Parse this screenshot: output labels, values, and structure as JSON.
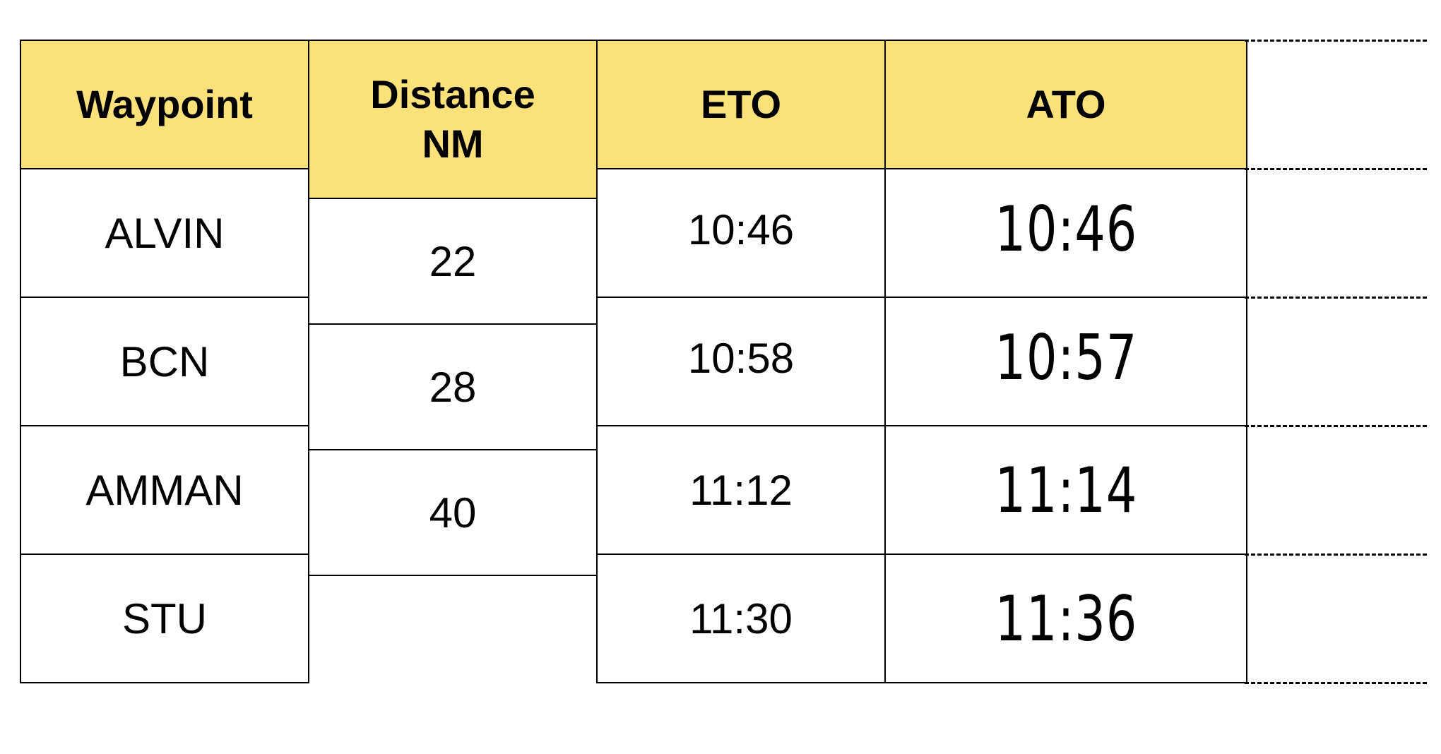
{
  "headers": {
    "waypoint": "Waypoint",
    "distance_line1": "Distance",
    "distance_line2": "NM",
    "eto": "ETO",
    "ato": "ATO"
  },
  "waypoints": [
    "ALVIN",
    "BCN",
    "AMMAN",
    "STU"
  ],
  "distances": [
    "22",
    "28",
    "40"
  ],
  "eto": [
    "10:46",
    "10:58",
    "11:12",
    "11:30"
  ],
  "ato": [
    "10:46",
    "10:57",
    "11:14",
    "11:36"
  ],
  "colors": {
    "header_fill": "#fbe17a",
    "border": "#000000"
  }
}
